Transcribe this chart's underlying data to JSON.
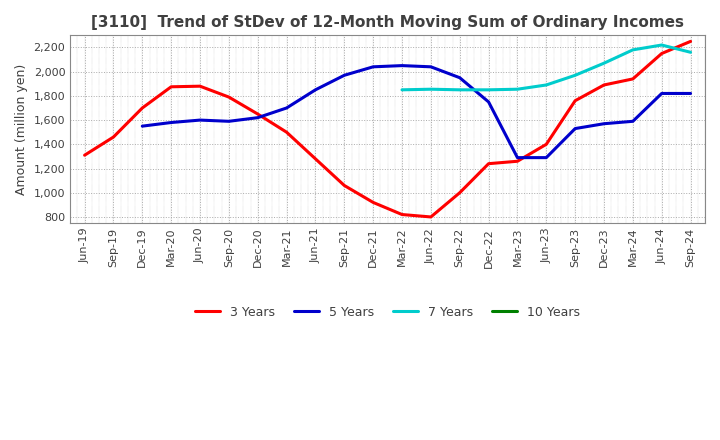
{
  "title": "[3110]  Trend of StDev of 12-Month Moving Sum of Ordinary Incomes",
  "ylabel": "Amount (million yen)",
  "ylim": [
    750,
    2300
  ],
  "yticks": [
    800,
    1000,
    1200,
    1400,
    1600,
    1800,
    2000,
    2200
  ],
  "line_colors": {
    "3 Years": "#ff0000",
    "5 Years": "#0000cc",
    "7 Years": "#00cccc",
    "10 Years": "#008000"
  },
  "x_labels": [
    "Jun-19",
    "Sep-19",
    "Dec-19",
    "Mar-20",
    "Jun-20",
    "Sep-20",
    "Dec-20",
    "Mar-21",
    "Jun-21",
    "Sep-21",
    "Dec-21",
    "Mar-22",
    "Jun-22",
    "Sep-22",
    "Dec-22",
    "Mar-23",
    "Jun-23",
    "Sep-23",
    "Dec-23",
    "Mar-24",
    "Jun-24",
    "Sep-24"
  ],
  "series": {
    "3 Years": [
      1310,
      1460,
      1700,
      1875,
      1880,
      1790,
      1650,
      1500,
      1280,
      1060,
      920,
      820,
      800,
      1000,
      1240,
      1260,
      1400,
      1760,
      1890,
      1940,
      2150,
      2250
    ],
    "5 Years": [
      null,
      null,
      1550,
      1580,
      1600,
      1590,
      1620,
      1700,
      1850,
      1970,
      2040,
      2050,
      2040,
      1950,
      1750,
      1290,
      1290,
      1530,
      1570,
      1590,
      1820,
      1820
    ],
    "7 Years": [
      null,
      null,
      null,
      null,
      null,
      null,
      null,
      null,
      null,
      null,
      null,
      1850,
      1855,
      1850,
      1850,
      1855,
      1890,
      1970,
      2070,
      2180,
      2220,
      2160
    ],
    "10 Years": [
      null,
      null,
      null,
      null,
      null,
      null,
      null,
      null,
      null,
      null,
      null,
      null,
      null,
      null,
      null,
      null,
      null,
      null,
      null,
      null,
      null,
      null
    ]
  },
  "background_color": "#ffffff",
  "plot_bg_color": "#ffffff",
  "grid_color": "#aaaaaa",
  "title_color": "#404040",
  "axis_color": "#404040",
  "line_width": 2.2
}
